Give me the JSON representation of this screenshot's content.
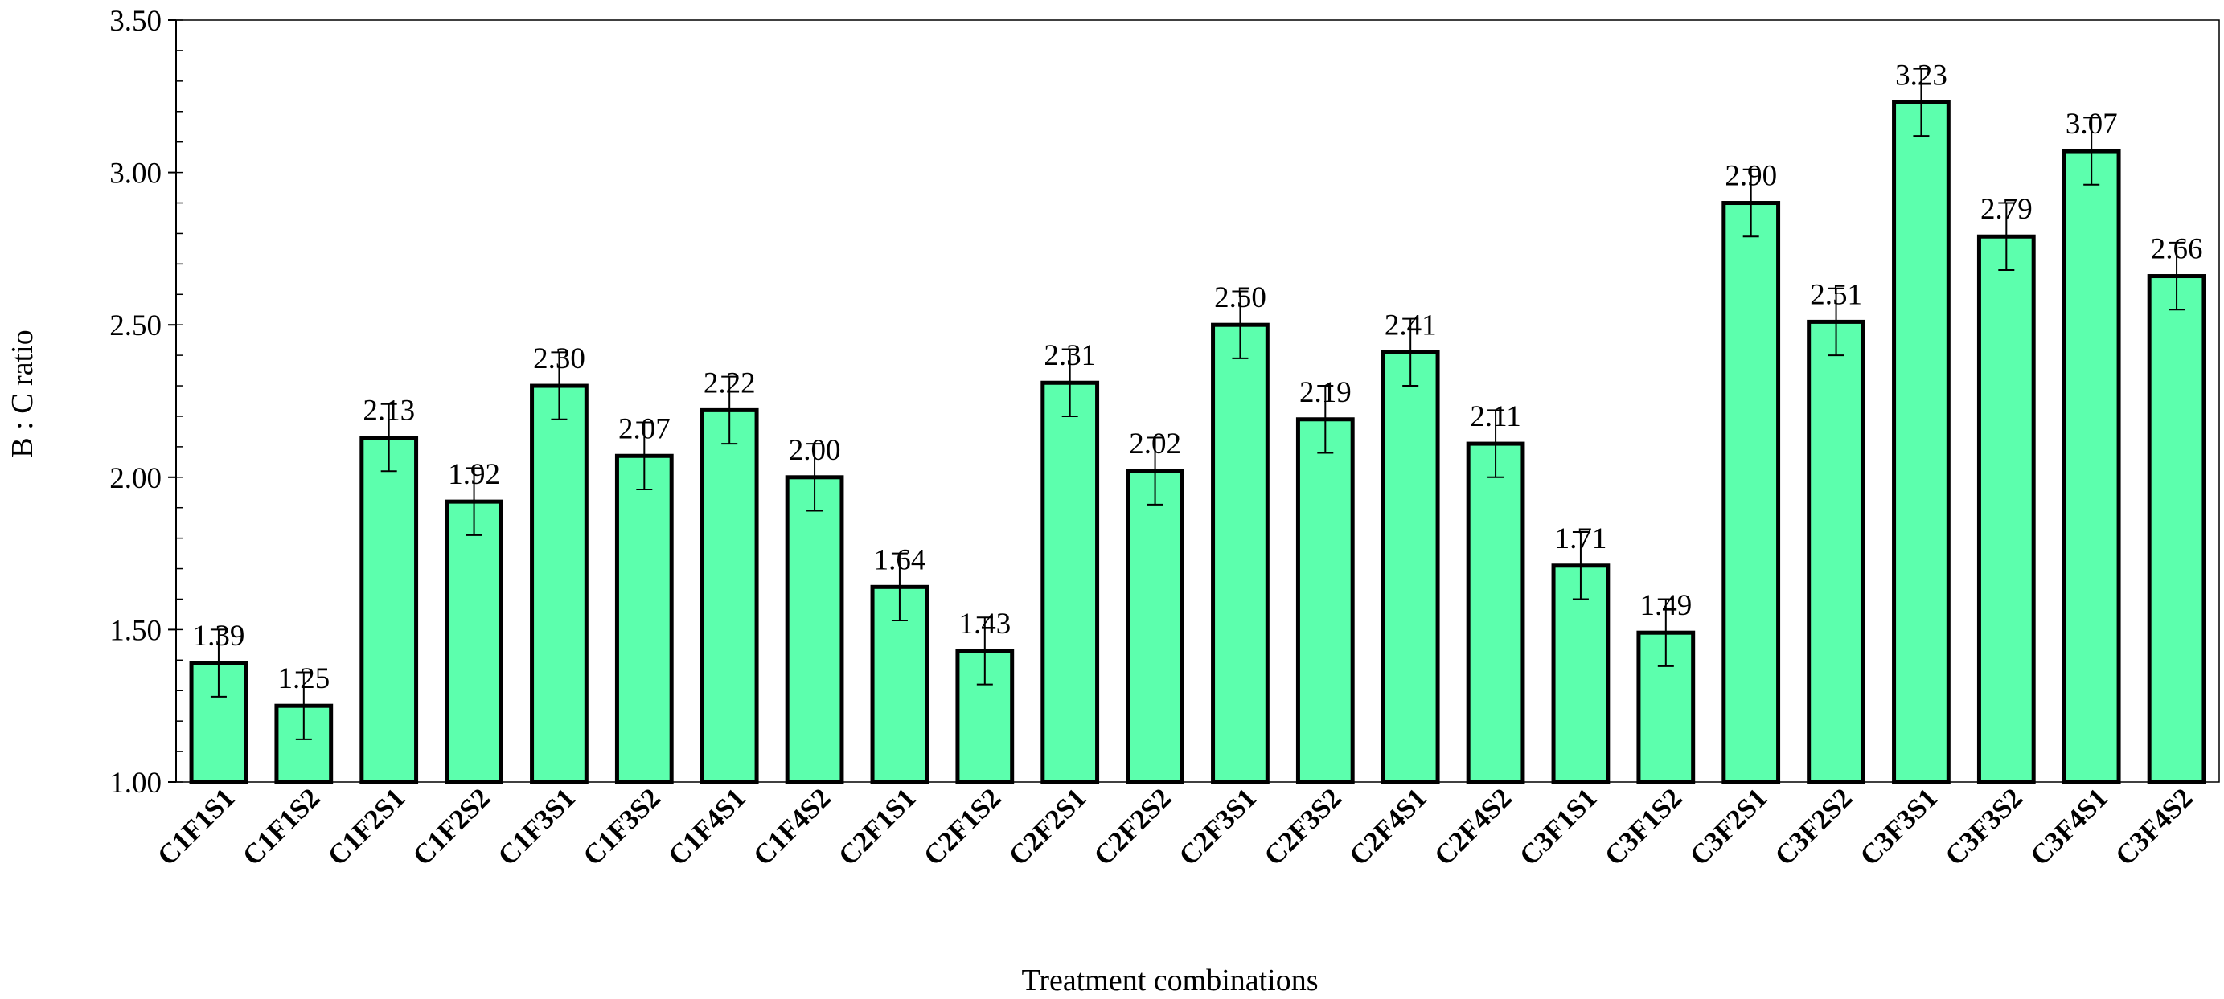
{
  "chart_data": {
    "type": "bar",
    "title": "",
    "xlabel": "Treatment combinations",
    "ylabel": "B : C ratio",
    "ylim": [
      1.0,
      3.5
    ],
    "yticks": [
      1.0,
      1.5,
      2.0,
      2.5,
      3.0,
      3.5
    ],
    "ytick_labels": [
      "1.00",
      "1.50",
      "2.00",
      "2.50",
      "3.00",
      "3.50"
    ],
    "grid": false,
    "legend": "none",
    "bar_color": "#5cffad",
    "categories": [
      "C1F1S1",
      "C1F1S2",
      "C1F2S1",
      "C1F2S2",
      "C1F3S1",
      "C1F3S2",
      "C1F4S1",
      "C1F4S2",
      "C2F1S1",
      "C2F1S2",
      "C2F2S1",
      "C2F2S2",
      "C2F3S1",
      "C2F3S2",
      "C2F4S1",
      "C2F4S2",
      "C3F1S1",
      "C3F1S2",
      "C3F2S1",
      "C3F2S2",
      "C3F3S1",
      "C3F3S2",
      "C3F4S1",
      "C3F4S2"
    ],
    "values": [
      1.39,
      1.25,
      2.13,
      1.92,
      2.3,
      2.07,
      2.22,
      2.0,
      1.64,
      1.43,
      2.31,
      2.02,
      2.5,
      2.19,
      2.41,
      2.11,
      1.71,
      1.49,
      2.9,
      2.51,
      3.23,
      2.79,
      3.07,
      2.66
    ],
    "value_labels": [
      "1.39",
      "1.25",
      "2.13",
      "1.92",
      "2.30",
      "2.07",
      "2.22",
      "2.00",
      "1.64",
      "1.43",
      "2.31",
      "2.02",
      "2.50",
      "2.19",
      "2.41",
      "2.11",
      "1.71",
      "1.49",
      "2.90",
      "2.51",
      "3.23",
      "2.79",
      "3.07",
      "2.66"
    ],
    "error_bar": 0.11
  }
}
